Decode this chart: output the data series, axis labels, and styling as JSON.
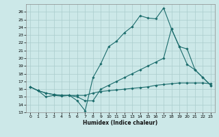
{
  "background_color": "#cce8e8",
  "grid_color": "#aacccc",
  "line_color": "#1a6b6b",
  "xlabel": "Humidex (Indice chaleur)",
  "ylim": [
    13,
    27
  ],
  "xlim": [
    -0.5,
    23.5
  ],
  "yticks": [
    13,
    14,
    15,
    16,
    17,
    18,
    19,
    20,
    21,
    22,
    23,
    24,
    25,
    26
  ],
  "xticks": [
    0,
    1,
    2,
    3,
    4,
    5,
    6,
    7,
    8,
    9,
    10,
    11,
    12,
    13,
    14,
    15,
    16,
    17,
    18,
    19,
    20,
    21,
    22,
    23
  ],
  "lines": [
    {
      "x": [
        0,
        1,
        2,
        3,
        4,
        5,
        6,
        7,
        8,
        9,
        10,
        11,
        12,
        13,
        14,
        15,
        16,
        17,
        18,
        19,
        20,
        21,
        22,
        23
      ],
      "y": [
        16.3,
        15.8,
        15.0,
        15.2,
        15.1,
        15.2,
        14.5,
        13.2,
        17.5,
        19.3,
        21.5,
        22.2,
        23.3,
        24.1,
        25.5,
        25.2,
        25.1,
        26.5,
        23.8,
        21.5,
        19.2,
        18.5,
        17.5,
        16.5
      ]
    },
    {
      "x": [
        0,
        1,
        2,
        3,
        4,
        5,
        6,
        7,
        8,
        9,
        10,
        11,
        12,
        13,
        14,
        15,
        16,
        17,
        18,
        19,
        20,
        21,
        22,
        23
      ],
      "y": [
        16.3,
        15.8,
        15.5,
        15.3,
        15.2,
        15.2,
        15.2,
        15.2,
        15.5,
        15.7,
        15.8,
        15.9,
        16.0,
        16.1,
        16.2,
        16.3,
        16.5,
        16.6,
        16.7,
        16.8,
        16.8,
        16.8,
        16.8,
        16.7
      ]
    },
    {
      "x": [
        0,
        1,
        2,
        3,
        4,
        5,
        6,
        7,
        8,
        9,
        10,
        11,
        12,
        13,
        14,
        15,
        16,
        17,
        18,
        19,
        20,
        21,
        22,
        23
      ],
      "y": [
        16.3,
        15.8,
        15.5,
        15.3,
        15.2,
        15.2,
        15.0,
        14.5,
        14.5,
        16.0,
        16.5,
        17.0,
        17.5,
        18.0,
        18.5,
        19.0,
        19.5,
        20.0,
        23.8,
        21.5,
        21.2,
        18.5,
        17.5,
        16.5
      ]
    }
  ]
}
